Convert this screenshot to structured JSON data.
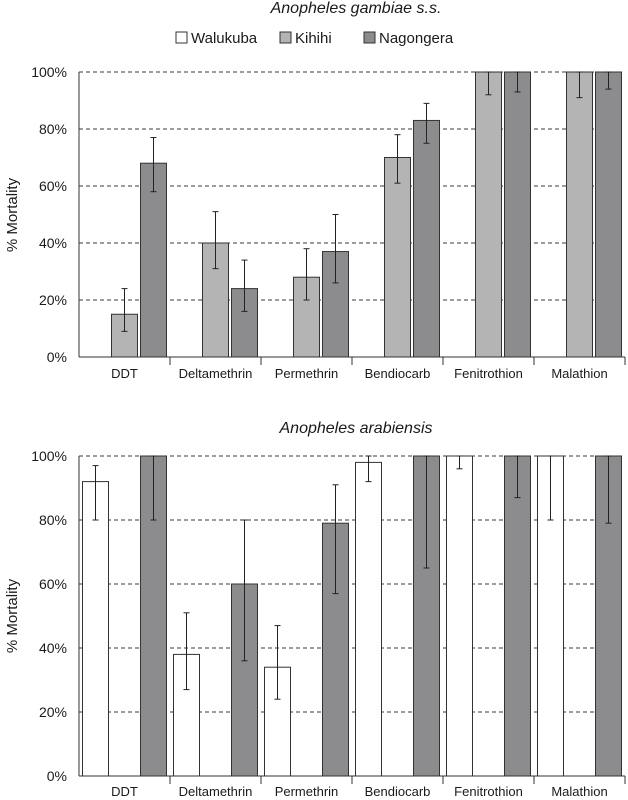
{
  "chart_data": [
    {
      "type": "bar",
      "title": "Anopheles gambiae s.s.",
      "ylabel": "% Mortality",
      "ylim": [
        0,
        100
      ],
      "yticks": [
        "0%",
        "20%",
        "40%",
        "60%",
        "80%",
        "100%"
      ],
      "grid": true,
      "legend_position": "top",
      "categories": [
        "DDT",
        "Deltamethrin",
        "Permethrin",
        "Bendiocarb",
        "Fenitrothion",
        "Malathion"
      ],
      "series": [
        {
          "name": "Walukuba",
          "color": "#ffffff",
          "values": [
            null,
            null,
            null,
            null,
            null,
            null
          ],
          "err_low": [
            null,
            null,
            null,
            null,
            null,
            null
          ],
          "err_high": [
            null,
            null,
            null,
            null,
            null,
            null
          ]
        },
        {
          "name": "Kihihi",
          "color": "#b4b4b4",
          "values": [
            15,
            40,
            28,
            70,
            100,
            100
          ],
          "err_low": [
            9,
            31,
            20,
            61,
            92,
            91
          ],
          "err_high": [
            24,
            51,
            38,
            78,
            100,
            100
          ]
        },
        {
          "name": "Nagongera",
          "color": "#8c8c8e",
          "values": [
            68,
            24,
            37,
            83,
            100,
            100
          ],
          "err_low": [
            58,
            16,
            26,
            75,
            93,
            94
          ],
          "err_high": [
            77,
            34,
            50,
            89,
            100,
            100
          ]
        }
      ]
    },
    {
      "type": "bar",
      "title": "Anopheles arabiensis",
      "ylabel": "% Mortality",
      "ylim": [
        0,
        100
      ],
      "yticks": [
        "0%",
        "20%",
        "40%",
        "60%",
        "80%",
        "100%"
      ],
      "grid": true,
      "categories": [
        "DDT",
        "Deltamethrin",
        "Permethrin",
        "Bendiocarb",
        "Fenitrothion",
        "Malathion"
      ],
      "series": [
        {
          "name": "Walukuba",
          "color": "#ffffff",
          "values": [
            92,
            38,
            34,
            98,
            100,
            100
          ],
          "err_low": [
            80,
            27,
            24,
            92,
            96,
            80
          ],
          "err_high": [
            97,
            51,
            47,
            100,
            100,
            100
          ]
        },
        {
          "name": "Kihihi",
          "color": "#b4b4b4",
          "values": [
            null,
            null,
            null,
            null,
            null,
            null
          ],
          "err_low": [
            null,
            null,
            null,
            null,
            null,
            null
          ],
          "err_high": [
            null,
            null,
            null,
            null,
            null,
            null
          ]
        },
        {
          "name": "Nagongera",
          "color": "#8c8c8e",
          "values": [
            100,
            60,
            79,
            100,
            100,
            100
          ],
          "err_low": [
            80,
            36,
            57,
            65,
            87,
            79
          ],
          "err_high": [
            100,
            80,
            91,
            100,
            100,
            100
          ]
        }
      ]
    }
  ]
}
